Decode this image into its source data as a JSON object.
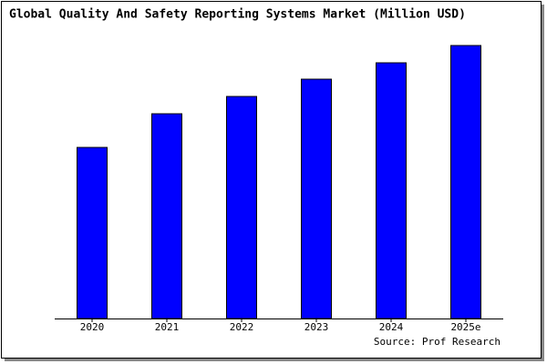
{
  "chart_data": {
    "type": "bar",
    "title": "Global Quality And Safety Reporting Systems Market (Million USD)",
    "categories": [
      "2020",
      "2021",
      "2022",
      "2023",
      "2024",
      "2025e"
    ],
    "values": [
      188,
      225,
      244,
      263,
      281,
      300
    ],
    "color": "#0000ff",
    "ylim": [
      0,
      302
    ],
    "source": "Source: Prof Research"
  }
}
